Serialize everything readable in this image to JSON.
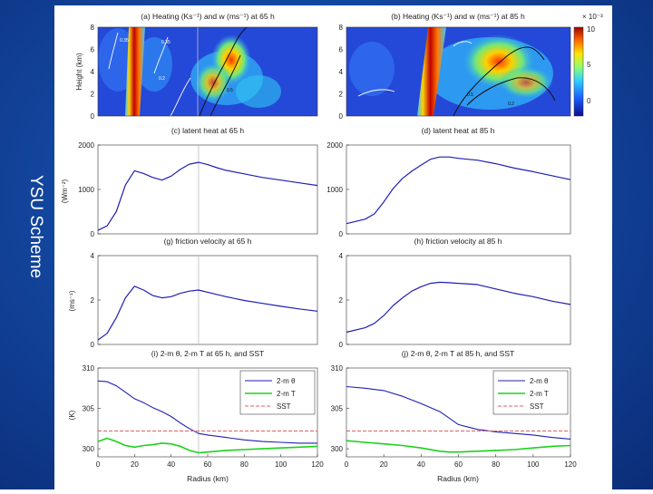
{
  "slide": {
    "side_label": "YSU Scheme"
  },
  "panels": {
    "a_title": "(a) Heating (Ks⁻¹) and w (ms⁻¹) at 65 h",
    "b_title": "(b) Heating (Ks⁻¹) and w (ms⁻¹) at 85 h",
    "c_title": "(c) latent heat at 65 h",
    "d_title": "(d) latent heat at 85 h",
    "g_title": "(g) friction velocity at 65 h",
    "h_title": "(h) friction velocity at 85 h",
    "i_title": "(i) 2-m θ, 2-m T at 65 h, and SST",
    "j_title": "(j) 2-m θ, 2-m T at 85 h, and SST"
  },
  "axes": {
    "height_label": "Height (km)",
    "latent_unit": "(Wm⁻²)",
    "friction_unit": "(ms⁻¹)",
    "temp_unit": "(K)",
    "radius_label": "Radius (km)"
  },
  "colorbar": {
    "scale": "× 10⁻³",
    "ticks": [
      "10",
      "5",
      "0"
    ]
  },
  "legend": {
    "theta": "2-m θ",
    "t2": "2-m T",
    "sst": "SST"
  },
  "colors": {
    "theta": "#1f1fb4",
    "t2": "#1bd21b",
    "sst": "#e06060",
    "ref_line": "#b9b9b9"
  },
  "chart_data": [
    {
      "id": "a",
      "type": "heatmap",
      "title": "(a) Heating (Ks⁻¹) and w (ms⁻¹) at 65 h",
      "xlim": [
        0,
        120
      ],
      "ylim": [
        0,
        8
      ],
      "yticks": [
        0,
        2,
        4,
        6,
        8
      ],
      "ylabel": "Height (km)",
      "reference_line_radius": 55,
      "contour_labels": [
        "0.35",
        "0.35",
        "0.2",
        "0.5"
      ]
    },
    {
      "id": "b",
      "type": "heatmap",
      "title": "(b) Heating (Ks⁻¹) and w (ms⁻¹) at 85 h",
      "xlim": [
        0,
        120
      ],
      "ylim": [
        0,
        8
      ],
      "yticks": [
        0,
        2,
        4,
        6,
        8
      ],
      "contour_labels": [
        "0.5",
        "0.2"
      ],
      "colorbar_range": [
        0,
        10
      ],
      "colorbar_scale": "× 10⁻³"
    },
    {
      "id": "c",
      "type": "line",
      "title": "(c) latent heat at 65 h",
      "ylabel": "(Wm⁻²)",
      "xlim": [
        0,
        120
      ],
      "ylim": [
        0,
        2000
      ],
      "yticks": [
        0,
        1000,
        2000
      ],
      "reference_line_radius": 55,
      "x": [
        0,
        5,
        10,
        15,
        20,
        25,
        30,
        35,
        40,
        45,
        50,
        55,
        60,
        65,
        70,
        80,
        90,
        100,
        110,
        120
      ],
      "y": [
        80,
        180,
        500,
        1100,
        1420,
        1360,
        1270,
        1210,
        1300,
        1450,
        1570,
        1610,
        1560,
        1490,
        1430,
        1350,
        1270,
        1210,
        1150,
        1090
      ]
    },
    {
      "id": "d",
      "type": "line",
      "title": "(d) latent heat at 85 h",
      "xlim": [
        0,
        120
      ],
      "ylim": [
        0,
        2000
      ],
      "yticks": [
        0,
        1000,
        2000
      ],
      "x": [
        0,
        10,
        15,
        20,
        25,
        30,
        35,
        40,
        45,
        50,
        55,
        60,
        70,
        80,
        90,
        100,
        110,
        120
      ],
      "y": [
        230,
        330,
        450,
        720,
        1020,
        1250,
        1410,
        1550,
        1680,
        1730,
        1730,
        1700,
        1660,
        1580,
        1480,
        1400,
        1310,
        1220
      ]
    },
    {
      "id": "g",
      "type": "line",
      "title": "(g) friction velocity at 65 h",
      "ylabel": "(ms⁻¹)",
      "xlim": [
        0,
        120
      ],
      "ylim": [
        0,
        4
      ],
      "yticks": [
        0,
        2,
        4
      ],
      "reference_line_radius": 55,
      "x": [
        0,
        5,
        10,
        15,
        20,
        25,
        30,
        35,
        40,
        45,
        50,
        55,
        60,
        70,
        80,
        90,
        100,
        110,
        120
      ],
      "y": [
        0.2,
        0.5,
        1.2,
        2.1,
        2.62,
        2.45,
        2.2,
        2.1,
        2.15,
        2.3,
        2.4,
        2.45,
        2.35,
        2.15,
        1.98,
        1.85,
        1.72,
        1.6,
        1.5
      ]
    },
    {
      "id": "h",
      "type": "line",
      "title": "(h) friction velocity at 85 h",
      "xlim": [
        0,
        120
      ],
      "ylim": [
        0,
        4
      ],
      "yticks": [
        0,
        2,
        4
      ],
      "x": [
        0,
        10,
        15,
        20,
        25,
        30,
        35,
        40,
        45,
        50,
        55,
        60,
        70,
        80,
        90,
        100,
        110,
        120
      ],
      "y": [
        0.55,
        0.75,
        0.95,
        1.3,
        1.75,
        2.1,
        2.4,
        2.6,
        2.75,
        2.8,
        2.78,
        2.75,
        2.7,
        2.5,
        2.3,
        2.15,
        1.95,
        1.8
      ]
    },
    {
      "id": "i",
      "type": "line",
      "title": "(i) 2-m θ, 2-m T at 65 h, and SST",
      "ylabel": "(K)",
      "xlabel": "Radius (km)",
      "xlim": [
        0,
        120
      ],
      "ylim": [
        299,
        310
      ],
      "yticks": [
        300,
        305,
        310
      ],
      "xticks": [
        0,
        20,
        40,
        60,
        80,
        100,
        120
      ],
      "reference_line_radius": 55,
      "legend_position": "top-right",
      "x": [
        0,
        5,
        10,
        15,
        20,
        25,
        30,
        35,
        40,
        45,
        50,
        55,
        60,
        70,
        80,
        90,
        100,
        110,
        120
      ],
      "series": [
        {
          "name": "2-m θ",
          "values": [
            308.4,
            308.3,
            307.8,
            307.0,
            306.2,
            305.7,
            305.1,
            304.6,
            304.0,
            303.2,
            302.5,
            301.9,
            301.7,
            301.4,
            301.1,
            300.9,
            300.8,
            300.7,
            300.7
          ]
        },
        {
          "name": "2-m T",
          "values": [
            300.9,
            301.3,
            300.9,
            300.4,
            300.2,
            300.4,
            300.5,
            300.7,
            300.6,
            300.3,
            299.8,
            299.5,
            299.6,
            299.8,
            299.9,
            300.0,
            300.1,
            300.2,
            300.3
          ]
        },
        {
          "name": "SST",
          "values": [
            302.2,
            302.2,
            302.2,
            302.2,
            302.2,
            302.2,
            302.2,
            302.2,
            302.2,
            302.2,
            302.2,
            302.2,
            302.2,
            302.2,
            302.2,
            302.2,
            302.2,
            302.2,
            302.2
          ]
        }
      ]
    },
    {
      "id": "j",
      "type": "line",
      "title": "(j) 2-m θ, 2-m T at 85 h, and SST",
      "xlabel": "Radius (km)",
      "xlim": [
        0,
        120
      ],
      "ylim": [
        299,
        310
      ],
      "yticks": [
        300,
        305,
        310
      ],
      "xticks": [
        0,
        20,
        40,
        60,
        80,
        100,
        120
      ],
      "legend_position": "top-right",
      "x": [
        0,
        10,
        20,
        30,
        40,
        50,
        55,
        60,
        70,
        80,
        90,
        100,
        110,
        120
      ],
      "series": [
        {
          "name": "2-m θ",
          "values": [
            307.7,
            307.5,
            307.2,
            306.5,
            305.6,
            304.6,
            303.8,
            303.0,
            302.4,
            302.1,
            301.9,
            301.7,
            301.4,
            301.2
          ]
        },
        {
          "name": "2-m T",
          "values": [
            301.0,
            300.8,
            300.6,
            300.4,
            300.1,
            299.7,
            299.6,
            299.6,
            299.7,
            299.8,
            299.9,
            300.1,
            300.3,
            300.4
          ]
        },
        {
          "name": "SST",
          "values": [
            302.2,
            302.2,
            302.2,
            302.2,
            302.2,
            302.2,
            302.2,
            302.2,
            302.2,
            302.2,
            302.2,
            302.2,
            302.2,
            302.2
          ]
        }
      ]
    }
  ]
}
